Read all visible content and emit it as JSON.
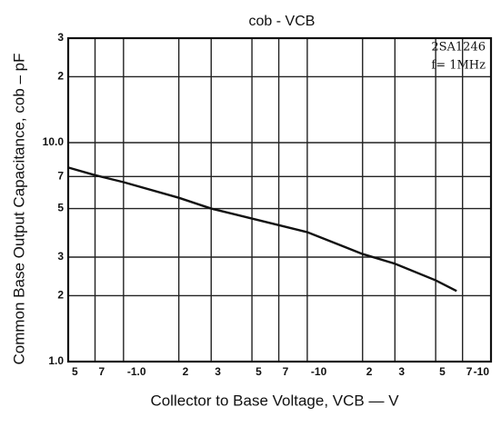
{
  "chart_data": {
    "type": "line",
    "title": "cob - VCB",
    "x_label": "Collector to Base Voltage, VCB — V",
    "y_label": "Common Base Output Capacitance, cob – pF",
    "annotations": [
      "2SA1246",
      "f= 1MHz"
    ],
    "x": [
      0.5,
      0.7,
      1,
      2,
      3,
      5,
      7,
      10,
      20,
      30,
      50,
      65
    ],
    "series": [
      {
        "name": "cob",
        "color": "#111111",
        "values": [
          7.7,
          7.1,
          6.6,
          5.6,
          5.0,
          4.5,
          4.2,
          3.9,
          3.1,
          2.8,
          2.35,
          2.1
        ]
      }
    ],
    "xlim": [
      0.5,
      100
    ],
    "ylim": [
      1,
      30
    ],
    "xscale": "log",
    "yscale": "log",
    "grid": true,
    "xticks": [
      {
        "value": 0.5,
        "label": "5"
      },
      {
        "value": 0.7,
        "label": "7"
      },
      {
        "value": 1,
        "label": "-1.0"
      },
      2,
      3,
      {
        "value": 5,
        "label": "5"
      },
      {
        "value": 7,
        "label": "7"
      },
      {
        "value": 10,
        "label": "-10"
      },
      {
        "value": 20,
        "label": "2"
      },
      {
        "value": 30,
        "label": "3"
      },
      {
        "value": 50,
        "label": "5"
      },
      {
        "value": 70,
        "label": "7"
      },
      {
        "value": 100,
        "label": "-10"
      }
    ],
    "yticks": [
      {
        "value": 1,
        "label": "1.0"
      },
      2,
      3,
      5,
      7,
      {
        "value": 10,
        "label": "10.0"
      },
      {
        "value": 20,
        "label": "2"
      },
      {
        "value": 30,
        "label": "3"
      }
    ]
  }
}
